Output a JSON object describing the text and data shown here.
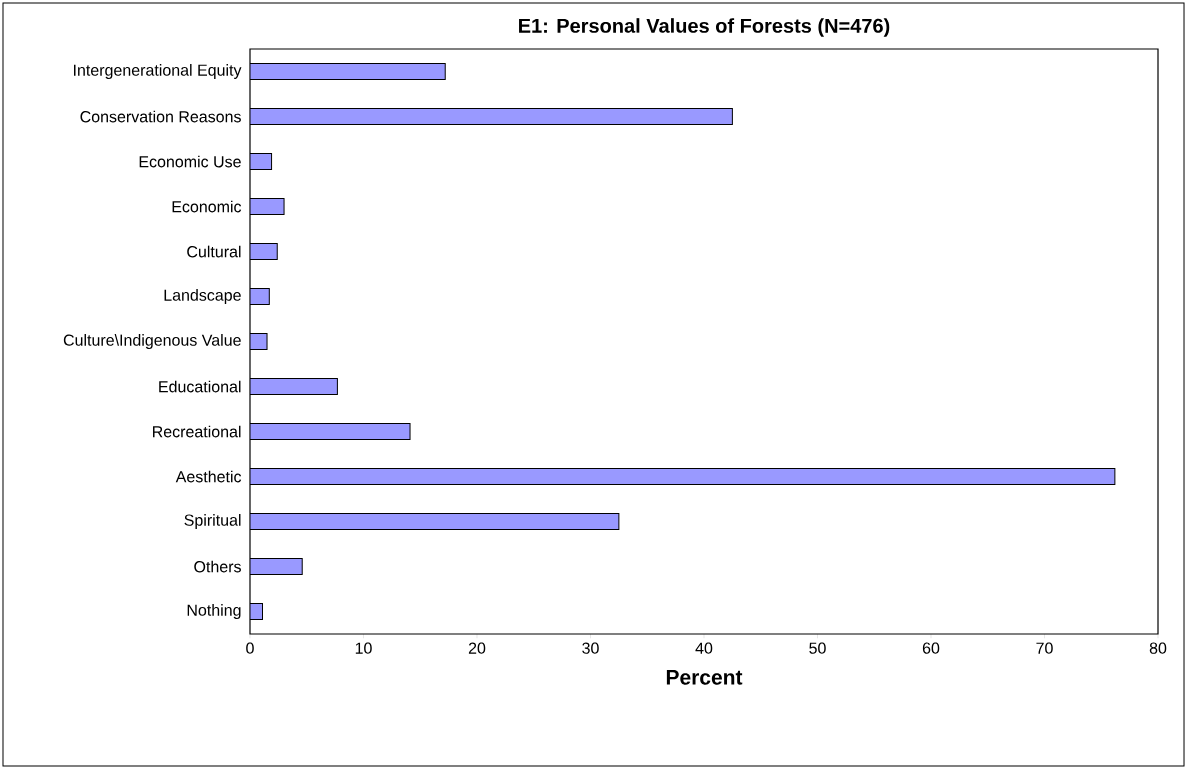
{
  "chart_data": {
    "type": "bar",
    "orientation": "horizontal",
    "title": "E1: Personal Values of Forests (N=476)",
    "xlabel": "Percent",
    "categories": [
      "Intergenerational Equity",
      "Conservation Reasons",
      "Economic Use",
      "Economic",
      "Cultural",
      "Landscape",
      "Culture\\Indigenous Value",
      "Educational",
      "Recreational",
      "Aesthetic",
      "Spiritual",
      "Others",
      "Nothing"
    ],
    "values": [
      17.2,
      42.5,
      1.9,
      3.0,
      2.4,
      1.7,
      1.5,
      7.7,
      14.1,
      76.2,
      32.5,
      4.6,
      1.1
    ],
    "color": "#9999ff",
    "xlim": [
      0,
      80
    ],
    "xticks": [
      0,
      10,
      20,
      30,
      40,
      50,
      60,
      70,
      80
    ],
    "grid": false
  }
}
